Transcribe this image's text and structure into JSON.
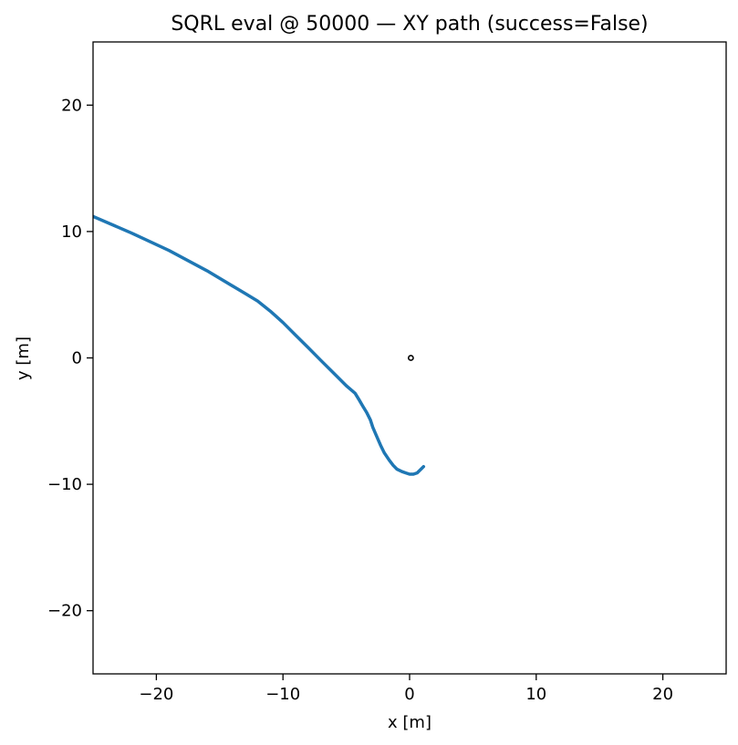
{
  "chart_data": {
    "type": "line",
    "title": "SQRL eval @ 50000 — XY path (success=False)",
    "xlabel": "x [m]",
    "ylabel": "y [m]",
    "xlim": [
      -25,
      25
    ],
    "ylim": [
      -25,
      25
    ],
    "xticks": [
      -20,
      -10,
      0,
      10,
      20
    ],
    "yticks": [
      -20,
      -10,
      0,
      10,
      20
    ],
    "xtick_labels": [
      "−20",
      "−10",
      "0",
      "10",
      "20"
    ],
    "ytick_labels": [
      "−20",
      "−10",
      "0",
      "10",
      "20"
    ],
    "grid": false,
    "legend": "none",
    "colors": {
      "path": "#1f77b4",
      "goal": "#000000"
    },
    "series": [
      {
        "x": [
          -25,
          -22,
          -19,
          -16,
          -13,
          -12,
          -11,
          -10,
          -9,
          -8,
          -7,
          -6,
          -5,
          -4.3,
          -4,
          -3.7,
          -3.4,
          -3.1,
          -2.9,
          -2.6,
          -2.3,
          -2,
          -1.6,
          -1.3,
          -1,
          -0.6,
          -0.3,
          0,
          0.3,
          0.6,
          0.8,
          1.0,
          1.1
        ],
        "y": [
          11.2,
          9.9,
          8.5,
          6.9,
          5.1,
          4.5,
          3.7,
          2.8,
          1.8,
          0.8,
          -0.2,
          -1.2,
          -2.2,
          -2.8,
          -3.3,
          -3.8,
          -4.3,
          -4.9,
          -5.5,
          -6.2,
          -6.9,
          -7.5,
          -8.1,
          -8.5,
          -8.8,
          -9.0,
          -9.1,
          -9.2,
          -9.2,
          -9.1,
          -8.9,
          -8.7,
          -8.6
        ]
      }
    ],
    "markers": [
      {
        "x": 0.1,
        "y": 0.0
      }
    ]
  }
}
